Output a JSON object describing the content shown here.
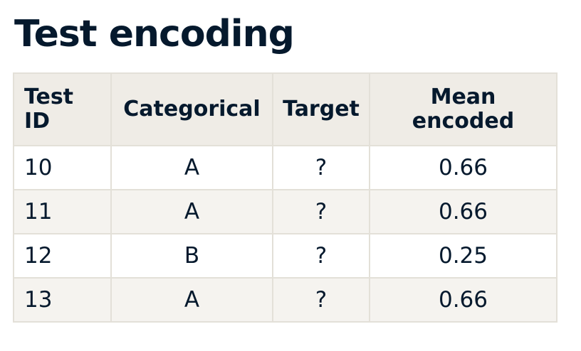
{
  "page": {
    "title": "Test encoding"
  },
  "table": {
    "headers": {
      "test_id": [
        "Test",
        "ID"
      ],
      "categorical": "Categorical",
      "target": "Target",
      "mean_encoded": [
        "Mean",
        "encoded"
      ]
    },
    "rows": [
      {
        "test_id": "10",
        "categorical": "A",
        "target": "?",
        "mean_encoded": "0.66"
      },
      {
        "test_id": "11",
        "categorical": "A",
        "target": "?",
        "mean_encoded": "0.66"
      },
      {
        "test_id": "12",
        "categorical": "B",
        "target": "?",
        "mean_encoded": "0.25"
      },
      {
        "test_id": "13",
        "categorical": "A",
        "target": "?",
        "mean_encoded": "0.66"
      }
    ]
  },
  "colors": {
    "text": "#05192d",
    "header_bg": "#efece6",
    "alt_row_bg": "#f5f3ef",
    "border": "#e3e0d8"
  }
}
